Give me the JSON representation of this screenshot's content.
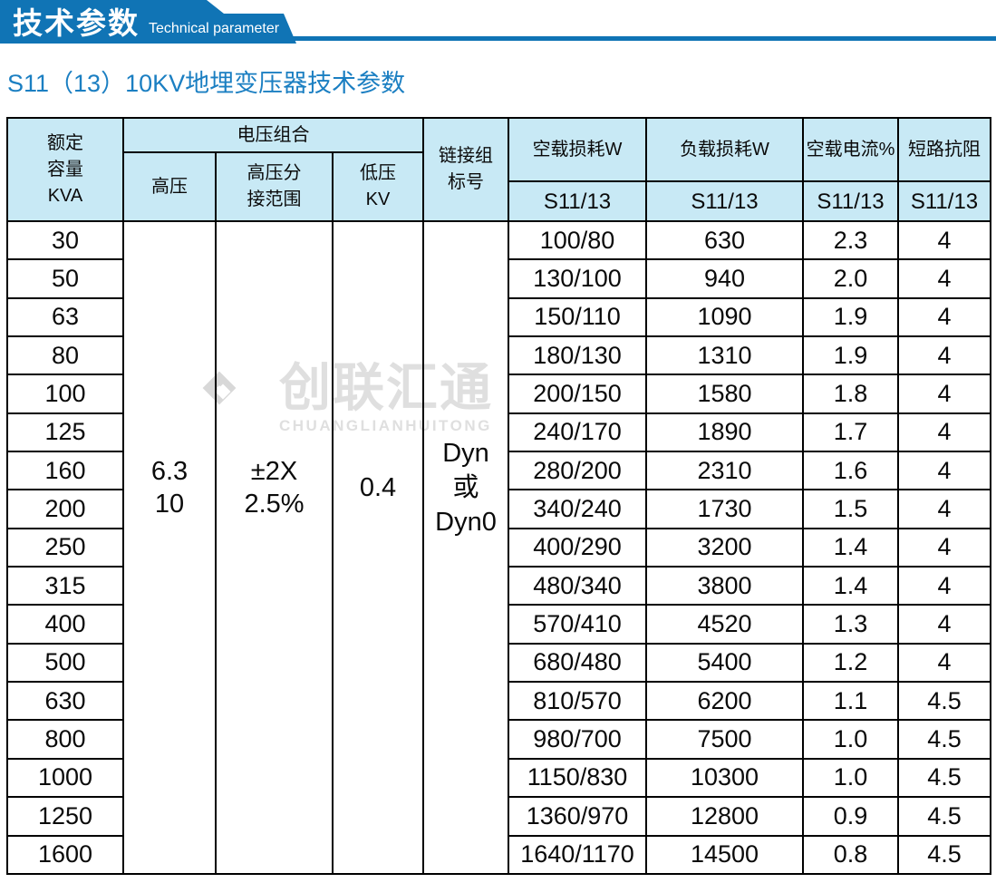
{
  "banner": {
    "title_zh": "技术参数",
    "title_en": "Technical parameter"
  },
  "page_title": "S11（13）10KV地埋变压器技术参数",
  "colors": {
    "banner_blue": "#1074b5",
    "title_blue": "#1b7fc2",
    "header_bg": "#c8e9f5",
    "border": "#000000",
    "watermark_gray": "#dfdfdf"
  },
  "table": {
    "header": {
      "rated_capacity": "额定\n容量\nKVA",
      "voltage_group": "电压组合",
      "hv": "高压",
      "hv_tap_range": "高压分\n接范围",
      "lv": "低压\nKV",
      "vector_group": "链接组\n标号",
      "no_load_loss": "空载损耗W",
      "load_loss": "负载损耗W",
      "no_load_current": "空载电流%",
      "impedance": "短路抗阻",
      "s11_label": "S11/13"
    },
    "merged": {
      "hv_value": "6.3\n10",
      "tap_value": "±2X\n2.5%",
      "lv_value": "0.4",
      "vector_value": "Dyn\n或\nDyn0"
    },
    "rows": [
      {
        "capacity": "30",
        "no_load_loss": "100/80",
        "load_loss": "630",
        "no_load_current": "2.3",
        "impedance": "4"
      },
      {
        "capacity": "50",
        "no_load_loss": "130/100",
        "load_loss": "940",
        "no_load_current": "2.0",
        "impedance": "4"
      },
      {
        "capacity": "63",
        "no_load_loss": "150/110",
        "load_loss": "1090",
        "no_load_current": "1.9",
        "impedance": "4"
      },
      {
        "capacity": "80",
        "no_load_loss": "180/130",
        "load_loss": "1310",
        "no_load_current": "1.9",
        "impedance": "4"
      },
      {
        "capacity": "100",
        "no_load_loss": "200/150",
        "load_loss": "1580",
        "no_load_current": "1.8",
        "impedance": "4"
      },
      {
        "capacity": "125",
        "no_load_loss": "240/170",
        "load_loss": "1890",
        "no_load_current": "1.7",
        "impedance": "4"
      },
      {
        "capacity": "160",
        "no_load_loss": "280/200",
        "load_loss": "2310",
        "no_load_current": "1.6",
        "impedance": "4"
      },
      {
        "capacity": "200",
        "no_load_loss": "340/240",
        "load_loss": "1730",
        "no_load_current": "1.5",
        "impedance": "4"
      },
      {
        "capacity": "250",
        "no_load_loss": "400/290",
        "load_loss": "3200",
        "no_load_current": "1.4",
        "impedance": "4"
      },
      {
        "capacity": "315",
        "no_load_loss": "480/340",
        "load_loss": "3800",
        "no_load_current": "1.4",
        "impedance": "4"
      },
      {
        "capacity": "400",
        "no_load_loss": "570/410",
        "load_loss": "4520",
        "no_load_current": "1.3",
        "impedance": "4"
      },
      {
        "capacity": "500",
        "no_load_loss": "680/480",
        "load_loss": "5400",
        "no_load_current": "1.2",
        "impedance": "4"
      },
      {
        "capacity": "630",
        "no_load_loss": "810/570",
        "load_loss": "6200",
        "no_load_current": "1.1",
        "impedance": "4.5"
      },
      {
        "capacity": "800",
        "no_load_loss": "980/700",
        "load_loss": "7500",
        "no_load_current": "1.0",
        "impedance": "4.5"
      },
      {
        "capacity": "1000",
        "no_load_loss": "1150/830",
        "load_loss": "10300",
        "no_load_current": "1.0",
        "impedance": "4.5"
      },
      {
        "capacity": "1250",
        "no_load_loss": "1360/970",
        "load_loss": "12800",
        "no_load_current": "0.9",
        "impedance": "4.5"
      },
      {
        "capacity": "1600",
        "no_load_loss": "1640/1170",
        "load_loss": "14500",
        "no_load_current": "0.8",
        "impedance": "4.5"
      }
    ]
  },
  "watermark": {
    "logo": "diamond-logo",
    "zh": "创联汇通",
    "en": "CHUANGLIANHUITONG"
  }
}
